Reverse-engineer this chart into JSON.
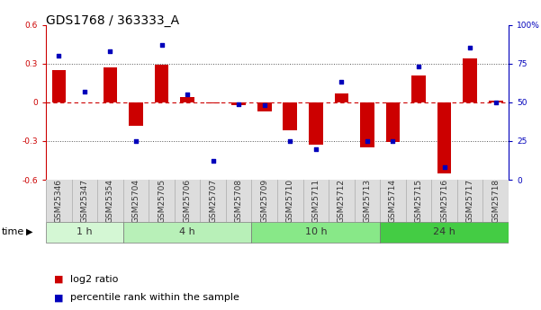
{
  "title": "GDS1768 / 363333_A",
  "samples": [
    "GSM25346",
    "GSM25347",
    "GSM25354",
    "GSM25704",
    "GSM25705",
    "GSM25706",
    "GSM25707",
    "GSM25708",
    "GSM25709",
    "GSM25710",
    "GSM25711",
    "GSM25712",
    "GSM25713",
    "GSM25714",
    "GSM25715",
    "GSM25716",
    "GSM25717",
    "GSM25718"
  ],
  "log2_ratio": [
    0.25,
    0.0,
    0.27,
    -0.18,
    0.29,
    0.04,
    -0.01,
    -0.02,
    -0.07,
    -0.22,
    -0.33,
    0.07,
    -0.35,
    -0.31,
    0.21,
    -0.55,
    0.34,
    0.01
  ],
  "percentile_rank": [
    80,
    57,
    83,
    25,
    87,
    55,
    12,
    49,
    48,
    25,
    20,
    63,
    25,
    25,
    73,
    8,
    85,
    50
  ],
  "groups": [
    {
      "label": "1 h",
      "start": 0,
      "end": 3
    },
    {
      "label": "4 h",
      "start": 3,
      "end": 8
    },
    {
      "label": "10 h",
      "start": 8,
      "end": 13
    },
    {
      "label": "24 h",
      "start": 13,
      "end": 18
    }
  ],
  "group_colors": [
    "#d4f7d4",
    "#b8f0b8",
    "#88e888",
    "#44cc44"
  ],
  "ylim": [
    -0.6,
    0.6
  ],
  "yticks_left": [
    -0.6,
    -0.3,
    0.0,
    0.3,
    0.6
  ],
  "yticks_right": [
    0,
    25,
    50,
    75,
    100
  ],
  "bar_color": "#cc0000",
  "dot_color": "#0000bb",
  "bar_width": 0.55,
  "hline_color": "#cc0000",
  "dotted_lines": [
    -0.3,
    0.3
  ],
  "dotted_color": "#555555",
  "time_label": "time",
  "legend_log2": "log2 ratio",
  "legend_pct": "percentile rank within the sample",
  "title_fontsize": 10,
  "tick_fontsize": 6.5,
  "label_fontsize": 8,
  "group_fontsize": 8
}
